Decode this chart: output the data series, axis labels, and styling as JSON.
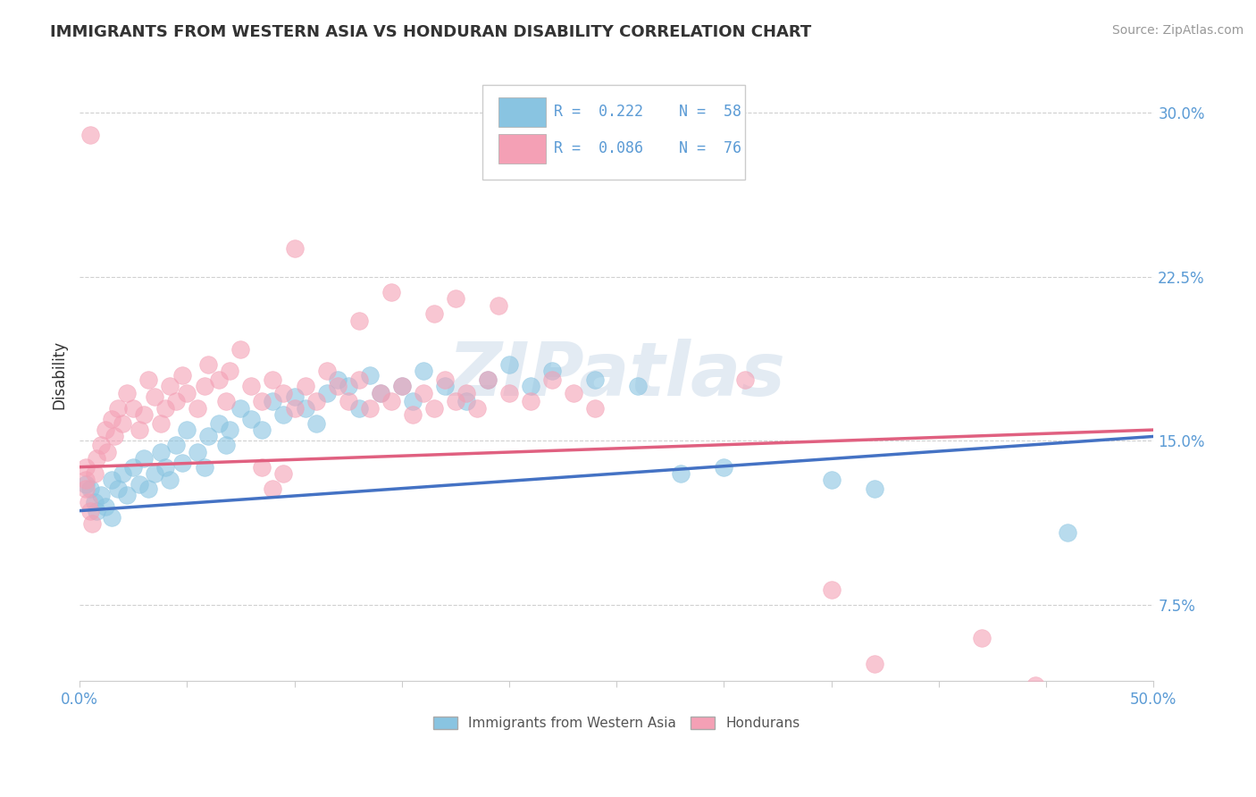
{
  "title": "IMMIGRANTS FROM WESTERN ASIA VS HONDURAN DISABILITY CORRELATION CHART",
  "source": "Source: ZipAtlas.com",
  "watermark": "ZIPatlas",
  "ylabel": "Disability",
  "xlim": [
    0.0,
    0.5
  ],
  "ylim": [
    0.04,
    0.32
  ],
  "yticks": [
    0.075,
    0.15,
    0.225,
    0.3
  ],
  "ytick_labels": [
    "7.5%",
    "15.0%",
    "22.5%",
    "30.0%"
  ],
  "xticks": [
    0.0,
    0.05,
    0.1,
    0.15,
    0.2,
    0.25,
    0.3,
    0.35,
    0.4,
    0.45,
    0.5
  ],
  "xtick_labels": [
    "0.0%",
    "",
    "",
    "",
    "",
    "",
    "",
    "",
    "",
    "",
    "50.0%"
  ],
  "color_blue": "#89c4e1",
  "color_pink": "#f4a0b5",
  "color_line_blue": "#4472c4",
  "color_line_pink": "#e06080",
  "background_color": "#ffffff",
  "grid_color": "#d0d0d0",
  "title_color": "#333333",
  "axis_color": "#5b9bd5",
  "scatter_blue": [
    [
      0.003,
      0.13
    ],
    [
      0.005,
      0.128
    ],
    [
      0.007,
      0.122
    ],
    [
      0.008,
      0.118
    ],
    [
      0.01,
      0.125
    ],
    [
      0.012,
      0.12
    ],
    [
      0.015,
      0.132
    ],
    [
      0.015,
      0.115
    ],
    [
      0.018,
      0.128
    ],
    [
      0.02,
      0.135
    ],
    [
      0.022,
      0.125
    ],
    [
      0.025,
      0.138
    ],
    [
      0.028,
      0.13
    ],
    [
      0.03,
      0.142
    ],
    [
      0.032,
      0.128
    ],
    [
      0.035,
      0.135
    ],
    [
      0.038,
      0.145
    ],
    [
      0.04,
      0.138
    ],
    [
      0.042,
      0.132
    ],
    [
      0.045,
      0.148
    ],
    [
      0.048,
      0.14
    ],
    [
      0.05,
      0.155
    ],
    [
      0.055,
      0.145
    ],
    [
      0.058,
      0.138
    ],
    [
      0.06,
      0.152
    ],
    [
      0.065,
      0.158
    ],
    [
      0.068,
      0.148
    ],
    [
      0.07,
      0.155
    ],
    [
      0.075,
      0.165
    ],
    [
      0.08,
      0.16
    ],
    [
      0.085,
      0.155
    ],
    [
      0.09,
      0.168
    ],
    [
      0.095,
      0.162
    ],
    [
      0.1,
      0.17
    ],
    [
      0.105,
      0.165
    ],
    [
      0.11,
      0.158
    ],
    [
      0.115,
      0.172
    ],
    [
      0.12,
      0.178
    ],
    [
      0.125,
      0.175
    ],
    [
      0.13,
      0.165
    ],
    [
      0.135,
      0.18
    ],
    [
      0.14,
      0.172
    ],
    [
      0.15,
      0.175
    ],
    [
      0.155,
      0.168
    ],
    [
      0.16,
      0.182
    ],
    [
      0.17,
      0.175
    ],
    [
      0.18,
      0.168
    ],
    [
      0.19,
      0.178
    ],
    [
      0.2,
      0.185
    ],
    [
      0.21,
      0.175
    ],
    [
      0.22,
      0.182
    ],
    [
      0.24,
      0.178
    ],
    [
      0.26,
      0.175
    ],
    [
      0.28,
      0.135
    ],
    [
      0.3,
      0.138
    ],
    [
      0.35,
      0.132
    ],
    [
      0.37,
      0.128
    ],
    [
      0.46,
      0.108
    ]
  ],
  "scatter_pink": [
    [
      0.003,
      0.138
    ],
    [
      0.003,
      0.132
    ],
    [
      0.003,
      0.128
    ],
    [
      0.004,
      0.122
    ],
    [
      0.005,
      0.118
    ],
    [
      0.006,
      0.112
    ],
    [
      0.007,
      0.135
    ],
    [
      0.008,
      0.142
    ],
    [
      0.01,
      0.148
    ],
    [
      0.012,
      0.155
    ],
    [
      0.013,
      0.145
    ],
    [
      0.015,
      0.16
    ],
    [
      0.016,
      0.152
    ],
    [
      0.018,
      0.165
    ],
    [
      0.02,
      0.158
    ],
    [
      0.022,
      0.172
    ],
    [
      0.025,
      0.165
    ],
    [
      0.028,
      0.155
    ],
    [
      0.03,
      0.162
    ],
    [
      0.032,
      0.178
    ],
    [
      0.035,
      0.17
    ],
    [
      0.038,
      0.158
    ],
    [
      0.04,
      0.165
    ],
    [
      0.042,
      0.175
    ],
    [
      0.045,
      0.168
    ],
    [
      0.048,
      0.18
    ],
    [
      0.05,
      0.172
    ],
    [
      0.055,
      0.165
    ],
    [
      0.058,
      0.175
    ],
    [
      0.06,
      0.185
    ],
    [
      0.065,
      0.178
    ],
    [
      0.068,
      0.168
    ],
    [
      0.07,
      0.182
    ],
    [
      0.075,
      0.192
    ],
    [
      0.08,
      0.175
    ],
    [
      0.085,
      0.168
    ],
    [
      0.09,
      0.178
    ],
    [
      0.095,
      0.172
    ],
    [
      0.1,
      0.165
    ],
    [
      0.105,
      0.175
    ],
    [
      0.11,
      0.168
    ],
    [
      0.115,
      0.182
    ],
    [
      0.12,
      0.175
    ],
    [
      0.125,
      0.168
    ],
    [
      0.13,
      0.178
    ],
    [
      0.135,
      0.165
    ],
    [
      0.14,
      0.172
    ],
    [
      0.145,
      0.168
    ],
    [
      0.15,
      0.175
    ],
    [
      0.155,
      0.162
    ],
    [
      0.16,
      0.172
    ],
    [
      0.165,
      0.165
    ],
    [
      0.17,
      0.178
    ],
    [
      0.175,
      0.168
    ],
    [
      0.18,
      0.172
    ],
    [
      0.185,
      0.165
    ],
    [
      0.19,
      0.178
    ],
    [
      0.2,
      0.172
    ],
    [
      0.21,
      0.168
    ],
    [
      0.22,
      0.178
    ],
    [
      0.23,
      0.172
    ],
    [
      0.24,
      0.165
    ],
    [
      0.005,
      0.29
    ],
    [
      0.1,
      0.238
    ],
    [
      0.13,
      0.205
    ],
    [
      0.145,
      0.218
    ],
    [
      0.165,
      0.208
    ],
    [
      0.175,
      0.215
    ],
    [
      0.195,
      0.212
    ],
    [
      0.085,
      0.138
    ],
    [
      0.09,
      0.128
    ],
    [
      0.095,
      0.135
    ],
    [
      0.31,
      0.178
    ],
    [
      0.35,
      0.082
    ],
    [
      0.42,
      0.06
    ],
    [
      0.445,
      0.038
    ],
    [
      0.37,
      0.048
    ]
  ],
  "trendline_blue": {
    "x_start": 0.0,
    "y_start": 0.118,
    "x_end": 0.5,
    "y_end": 0.152
  },
  "trendline_pink": {
    "x_start": 0.0,
    "y_start": 0.138,
    "x_end": 0.5,
    "y_end": 0.155
  }
}
